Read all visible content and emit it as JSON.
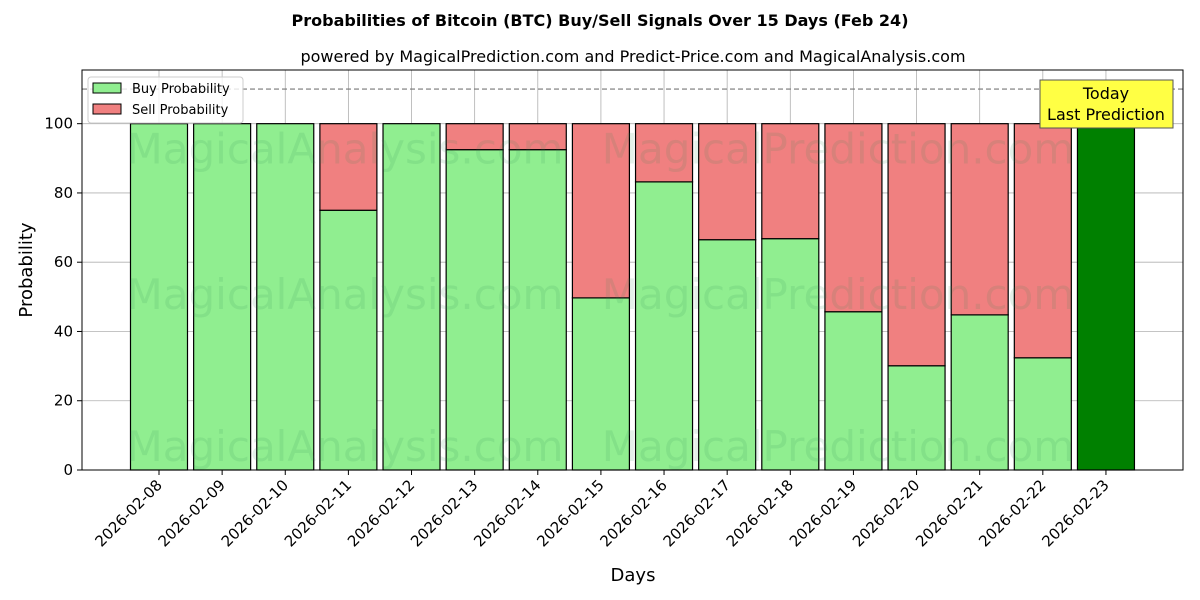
{
  "chart_data": {
    "type": "bar",
    "stacked": true,
    "title": "Probabilities of Bitcoin (BTC) Buy/Sell Signals Over 15 Days (Feb 24)",
    "subtitle": "powered by MagicalPrediction.com and Predict-Price.com and MagicalAnalysis.com",
    "xlabel": "Days",
    "ylabel": "Probability",
    "ylim": [
      0,
      115.5
    ],
    "yticks": [
      0,
      20,
      40,
      60,
      80,
      100
    ],
    "grid": true,
    "legend_position": "top-left",
    "categories": [
      "2026-02-08",
      "2026-02-09",
      "2026-02-10",
      "2026-02-11",
      "2026-02-12",
      "2026-02-13",
      "2026-02-14",
      "2026-02-15",
      "2026-02-16",
      "2026-02-17",
      "2026-02-18",
      "2026-02-19",
      "2026-02-20",
      "2026-02-21",
      "2026-02-22",
      "2026-02-23"
    ],
    "series": [
      {
        "name": "Buy Probability",
        "color": "#90ee90",
        "values": [
          100,
          100,
          100,
          75,
          100,
          92.5,
          92.5,
          49.7,
          83.2,
          66.5,
          66.8,
          45.7,
          30.1,
          44.8,
          32.4,
          100
        ]
      },
      {
        "name": "Sell Probability",
        "color": "#f08080",
        "values": [
          0,
          0,
          0,
          25,
          0,
          7.5,
          7.5,
          50.3,
          16.8,
          33.5,
          33.2,
          54.3,
          69.9,
          55.2,
          67.6,
          0
        ]
      }
    ],
    "highlight_color": "#008000",
    "reference_line": 110,
    "annotation": {
      "line1": "Today",
      "line2": "Last Prediction"
    },
    "watermarks": [
      "MagicalAnalysis.com",
      "MagicalPrediction.com"
    ]
  }
}
